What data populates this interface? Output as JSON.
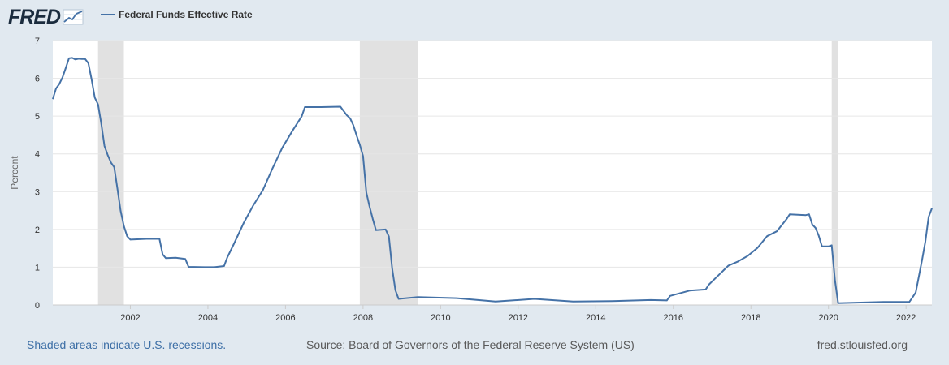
{
  "header": {
    "logo_text": "FRED"
  },
  "colors": {
    "line": "#4572a7",
    "recession": "#e1e1e1",
    "grid": "#e6e6e6",
    "plot_bg": "#ffffff",
    "page_bg": "#e1e9f0"
  },
  "footer": {
    "recession_note": "Shaded areas indicate U.S. recessions.",
    "source": "Source: Board of Governors of the Federal Reserve System (US)",
    "site": "fred.stlouisfed.org"
  },
  "chart_data": {
    "type": "line",
    "ylabel": "Percent",
    "ylim": [
      0,
      7
    ],
    "y_ticks": [
      "0",
      "1",
      "2",
      "3",
      "4",
      "5",
      "6",
      "7"
    ],
    "x_range": [
      "2000-01",
      "2022-09"
    ],
    "x_ticks": [
      "2002",
      "2004",
      "2006",
      "2008",
      "2010",
      "2012",
      "2014",
      "2016",
      "2018",
      "2020",
      "2022"
    ],
    "grid": true,
    "legend": "top-left",
    "recessions": [
      [
        "2001-03",
        "2001-11"
      ],
      [
        "2007-12",
        "2009-06"
      ],
      [
        "2020-02",
        "2020-04"
      ]
    ],
    "series": [
      {
        "name": "Federal Funds Effective Rate",
        "x": [
          "2000-01",
          "2000-02",
          "2000-03",
          "2000-04",
          "2000-05",
          "2000-06",
          "2000-07",
          "2000-08",
          "2000-09",
          "2000-10",
          "2000-11",
          "2000-12",
          "2001-01",
          "2001-02",
          "2001-03",
          "2001-04",
          "2001-05",
          "2001-06",
          "2001-07",
          "2001-08",
          "2001-09",
          "2001-10",
          "2001-11",
          "2001-12",
          "2002-01",
          "2002-06",
          "2002-10",
          "2002-11",
          "2002-12",
          "2003-03",
          "2003-06",
          "2003-07",
          "2003-12",
          "2004-03",
          "2004-06",
          "2004-07",
          "2004-09",
          "2004-12",
          "2005-03",
          "2005-06",
          "2005-09",
          "2005-12",
          "2006-03",
          "2006-06",
          "2006-07",
          "2006-12",
          "2007-06",
          "2007-08",
          "2007-09",
          "2007-10",
          "2007-11",
          "2007-12",
          "2008-01",
          "2008-02",
          "2008-03",
          "2008-04",
          "2008-05",
          "2008-08",
          "2008-09",
          "2008-10",
          "2008-11",
          "2008-12",
          "2009-06",
          "2010-06",
          "2011-06",
          "2012-06",
          "2013-06",
          "2014-06",
          "2015-06",
          "2015-11",
          "2015-12",
          "2016-06",
          "2016-11",
          "2016-12",
          "2017-03",
          "2017-06",
          "2017-09",
          "2017-12",
          "2018-03",
          "2018-06",
          "2018-09",
          "2018-12",
          "2019-01",
          "2019-06",
          "2019-07",
          "2019-08",
          "2019-09",
          "2019-10",
          "2019-11",
          "2020-01",
          "2020-02",
          "2020-03",
          "2020-04",
          "2021-06",
          "2022-02",
          "2022-03",
          "2022-04",
          "2022-05",
          "2022-06",
          "2022-07",
          "2022-08",
          "2022-09"
        ],
        "y": [
          5.45,
          5.73,
          5.85,
          6.02,
          6.27,
          6.53,
          6.54,
          6.5,
          6.52,
          6.51,
          6.51,
          6.4,
          5.98,
          5.49,
          5.31,
          4.8,
          4.21,
          3.97,
          3.77,
          3.65,
          3.07,
          2.49,
          2.09,
          1.82,
          1.73,
          1.75,
          1.75,
          1.34,
          1.24,
          1.25,
          1.22,
          1.01,
          1.0,
          1.0,
          1.03,
          1.26,
          1.61,
          2.16,
          2.63,
          3.04,
          3.62,
          4.16,
          4.59,
          4.99,
          5.24,
          5.24,
          5.25,
          5.02,
          4.94,
          4.76,
          4.49,
          4.24,
          3.94,
          2.98,
          2.61,
          2.28,
          1.98,
          2.0,
          1.81,
          0.97,
          0.39,
          0.16,
          0.21,
          0.18,
          0.09,
          0.16,
          0.09,
          0.1,
          0.13,
          0.12,
          0.24,
          0.38,
          0.41,
          0.54,
          0.79,
          1.04,
          1.15,
          1.3,
          1.51,
          1.82,
          1.95,
          2.27,
          2.4,
          2.38,
          2.4,
          2.13,
          2.04,
          1.83,
          1.55,
          1.55,
          1.58,
          0.65,
          0.05,
          0.08,
          0.08,
          0.2,
          0.33,
          0.77,
          1.21,
          1.68,
          2.33,
          2.56
        ]
      }
    ]
  }
}
